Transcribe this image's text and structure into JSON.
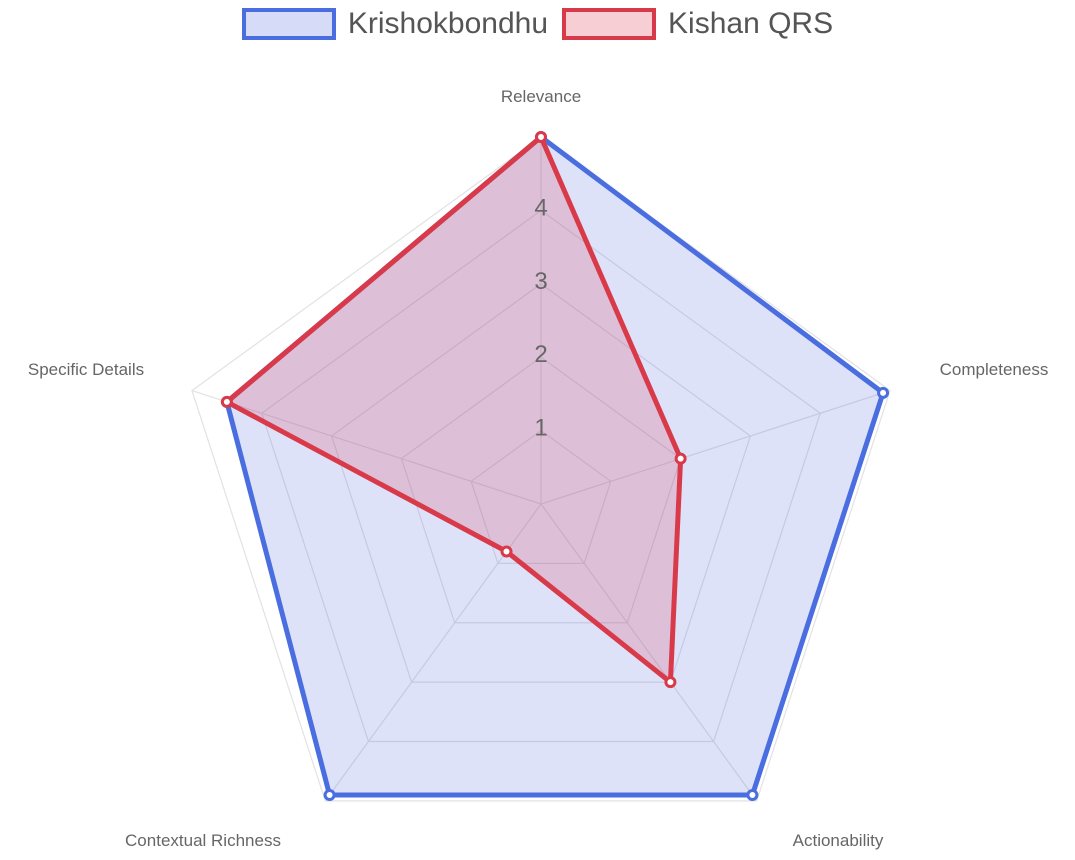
{
  "chart_data": {
    "type": "radar",
    "axes": [
      "Relevance",
      "Completeness",
      "Actionability",
      "Contextual Richness",
      "Specific Details"
    ],
    "r_range": [
      0,
      5
    ],
    "ticks": [
      1,
      2,
      3,
      4
    ],
    "grid": true,
    "legend_position": "top",
    "series": [
      {
        "name": "Krishokbondhu",
        "values": [
          5.0,
          4.9,
          4.9,
          4.9,
          4.5
        ],
        "color": "#4a6ee0",
        "fill": "rgba(90,110,225,0.20)"
      },
      {
        "name": "Kishan QRS",
        "values": [
          5.0,
          2.0,
          3.0,
          0.8,
          4.5
        ],
        "color": "#d93a4a",
        "fill": "rgba(220,60,80,0.20)"
      }
    ]
  }
}
